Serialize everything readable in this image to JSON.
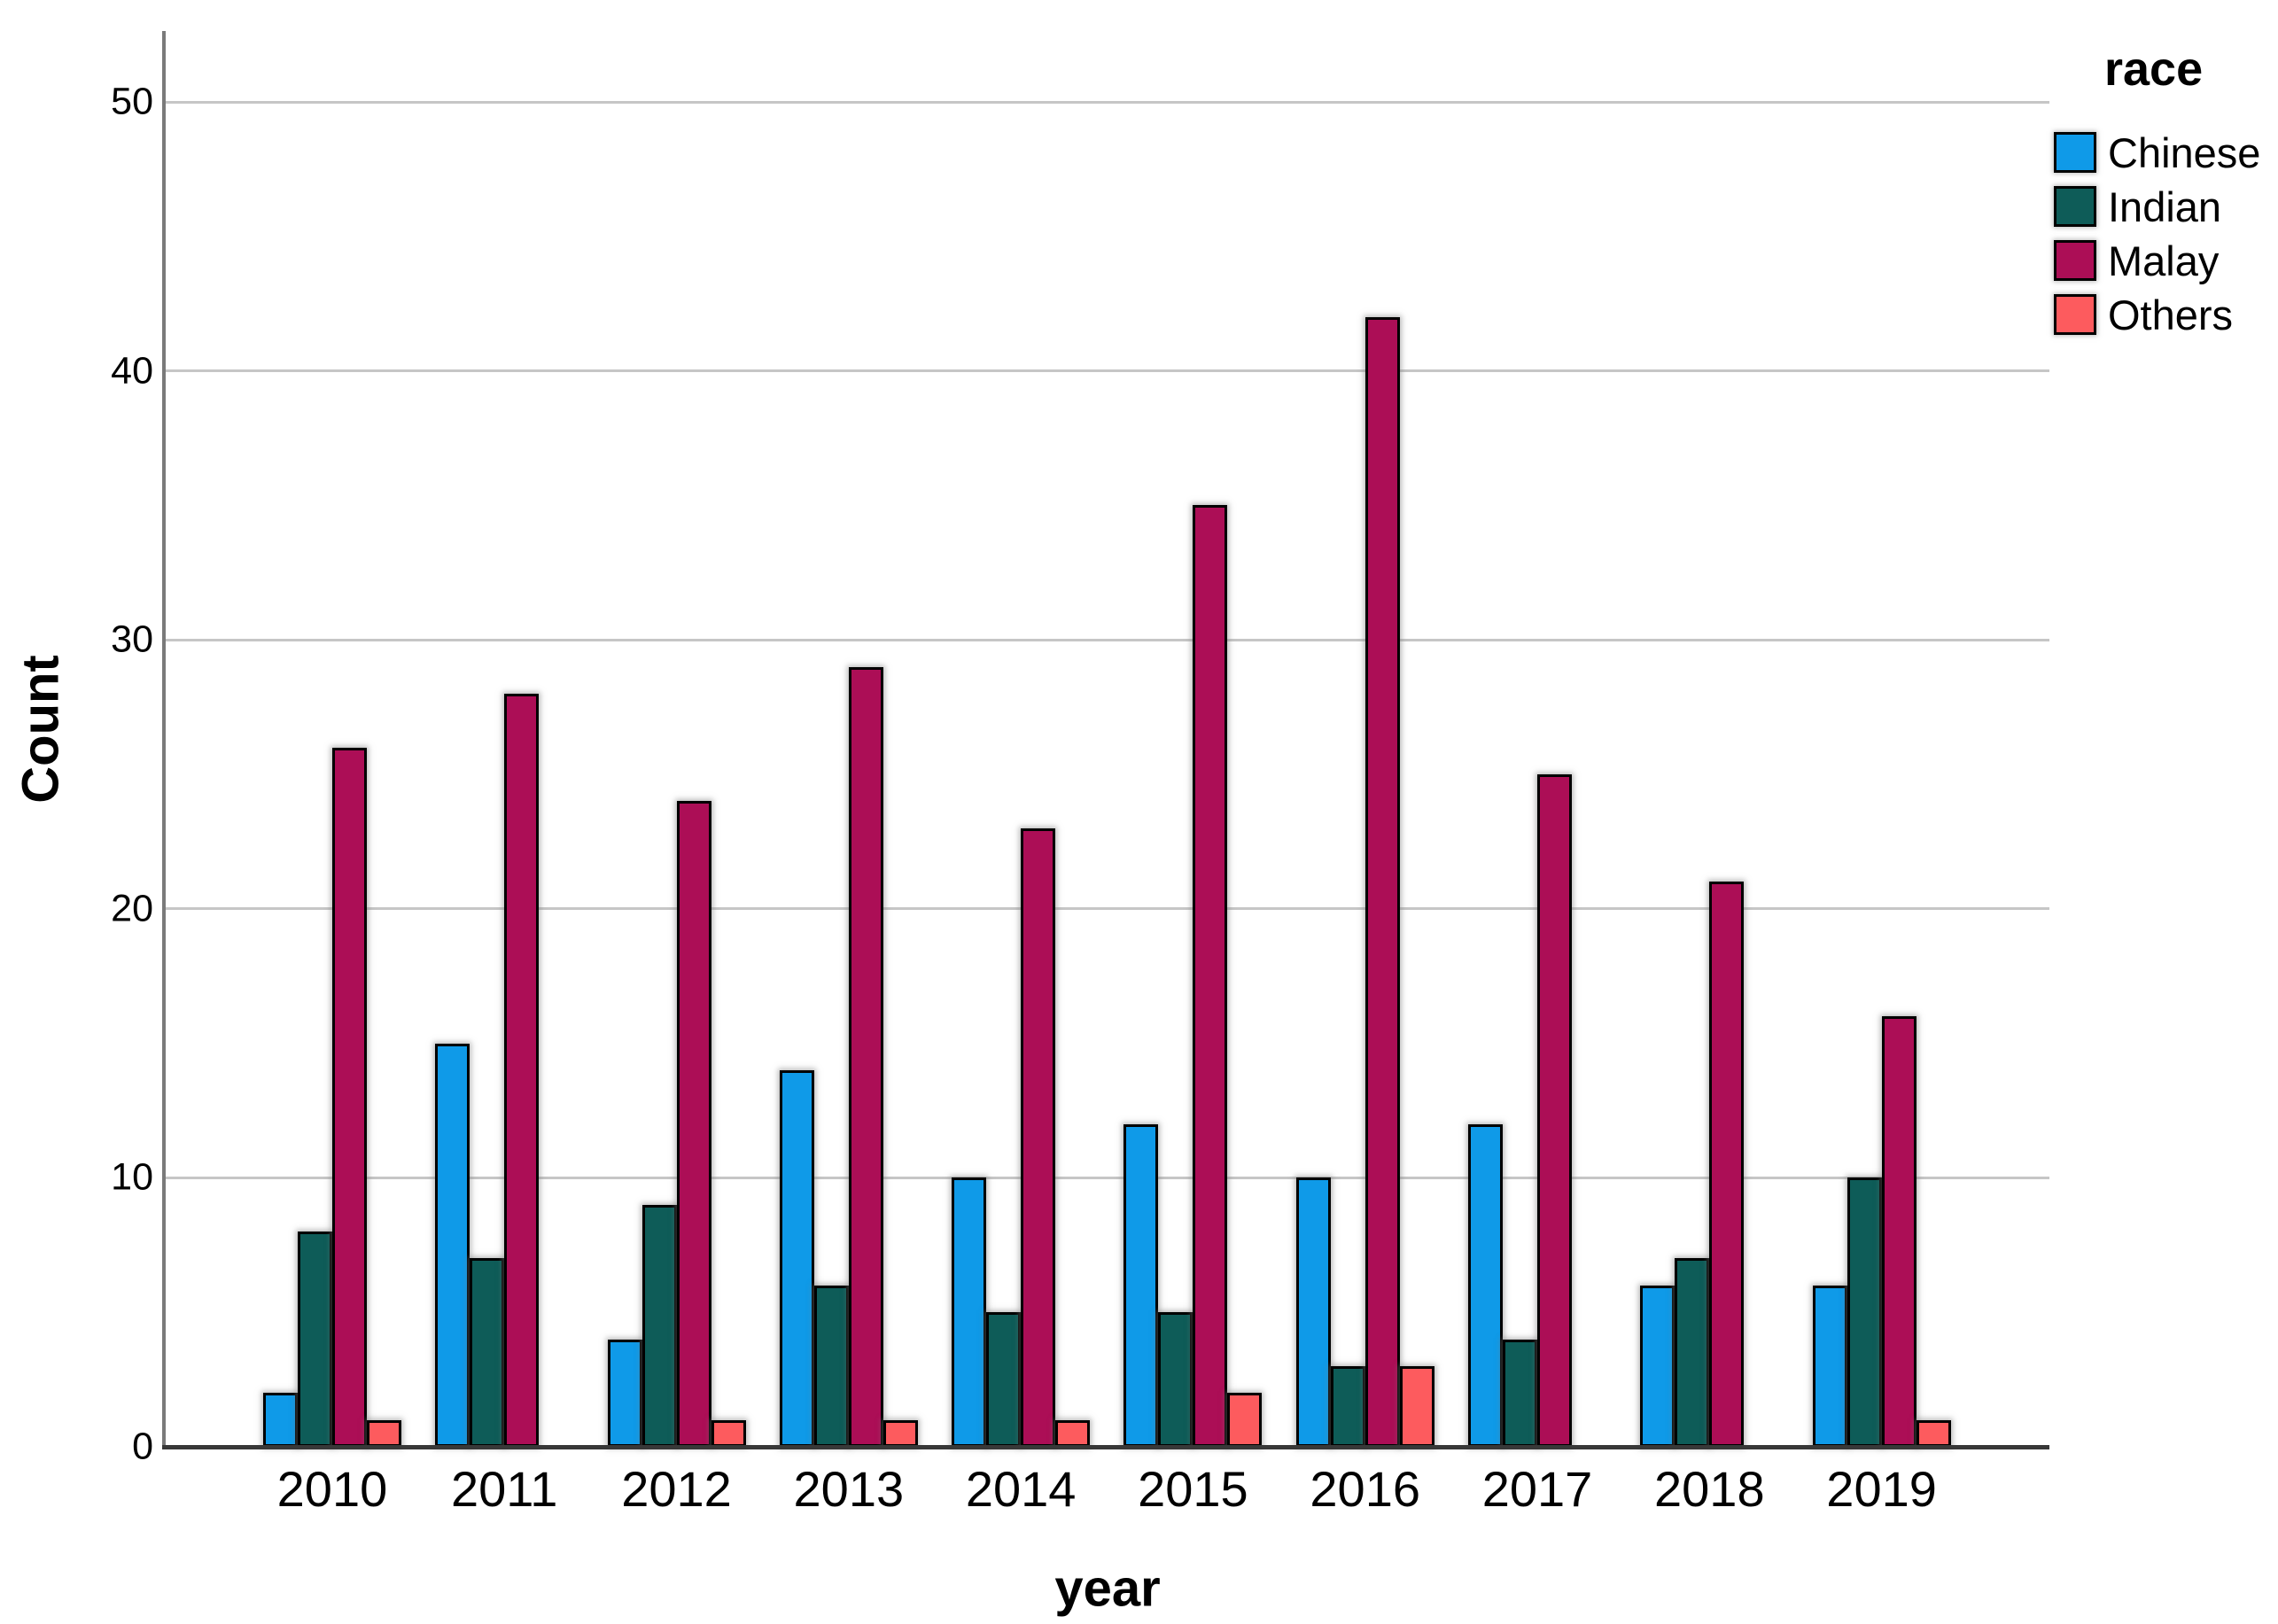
{
  "chart_data": {
    "type": "bar",
    "title": "",
    "xlabel": "year",
    "ylabel": "Count",
    "legend_title": "race",
    "legend_position": "top-right",
    "grid": "horizontal",
    "ylim": [
      0,
      50
    ],
    "yticks": [
      0,
      10,
      20,
      30,
      40,
      50
    ],
    "categories": [
      "2010",
      "2011",
      "2012",
      "2013",
      "2014",
      "2015",
      "2016",
      "2017",
      "2018",
      "2019"
    ],
    "series": [
      {
        "name": "Chinese",
        "color": "#0F9AE8",
        "values": [
          2,
          15,
          4,
          14,
          10,
          12,
          10,
          12,
          6,
          6
        ]
      },
      {
        "name": "Indian",
        "color": "#0E5C58",
        "values": [
          8,
          7,
          9,
          6,
          5,
          5,
          3,
          4,
          7,
          10
        ]
      },
      {
        "name": "Malay",
        "color": "#AC0E56",
        "values": [
          26,
          28,
          24,
          29,
          23,
          35,
          42,
          25,
          21,
          16
        ]
      },
      {
        "name": "Others",
        "color": "#FD5B5E",
        "values": [
          1,
          0,
          1,
          1,
          1,
          2,
          3,
          0,
          0,
          1
        ]
      }
    ]
  }
}
